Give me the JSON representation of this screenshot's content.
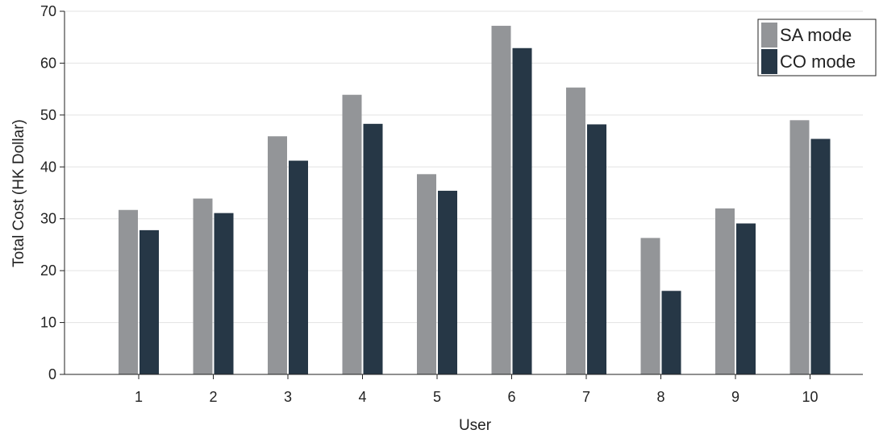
{
  "chart_data": {
    "type": "bar",
    "title": "",
    "xlabel": "User",
    "ylabel": "Total Cost (HK Dollar)",
    "ylim": [
      0,
      70
    ],
    "yticks": [
      0,
      10,
      20,
      30,
      40,
      50,
      60,
      70
    ],
    "grid": "horizontal",
    "legend_position": "top-right",
    "categories": [
      "1",
      "2",
      "3",
      "4",
      "5",
      "6",
      "7",
      "8",
      "9",
      "10"
    ],
    "series": [
      {
        "name": "SA mode",
        "color": "#939598",
        "values": [
          31.7,
          33.9,
          45.9,
          53.9,
          38.6,
          67.2,
          55.3,
          26.3,
          32.0,
          49.0
        ]
      },
      {
        "name": "CO mode",
        "color": "#263746",
        "values": [
          27.8,
          31.1,
          41.2,
          48.3,
          35.4,
          62.9,
          48.2,
          16.1,
          29.1,
          45.4
        ]
      }
    ]
  }
}
